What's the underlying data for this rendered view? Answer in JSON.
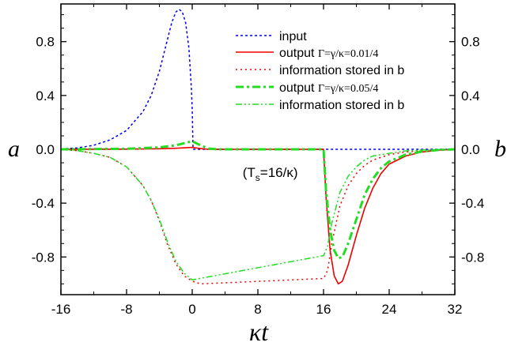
{
  "chart_data": {
    "type": "line",
    "xlabel": "κt",
    "ylabel_left": "a",
    "ylabel_right": "b",
    "xlim": [
      -16,
      32
    ],
    "ylim": [
      -1.08,
      1.08
    ],
    "x_ticks": [
      -16,
      -8,
      0,
      8,
      16,
      24,
      32
    ],
    "y_ticks": [
      0.8,
      0.4,
      0.0,
      -0.4,
      -0.8
    ],
    "y_tick_labels": [
      "0.8",
      "0.4",
      "0.0",
      "-0.4",
      "-0.8"
    ],
    "annotation": {
      "text": "(T",
      "sub": "s",
      "tail": "=16/κ)",
      "x": 10,
      "y": -0.17
    },
    "legend": [
      {
        "label": "input",
        "param": ""
      },
      {
        "label": "output",
        "param": "Γ=γ/κ=0.01/4"
      },
      {
        "label": "information stored in b",
        "param": ""
      },
      {
        "label": "output",
        "param": "Γ=γ/κ=0.05/4"
      },
      {
        "label": "information stored in b",
        "param": ""
      }
    ],
    "series": [
      {
        "label": "input",
        "color": "#0000ee",
        "dash": "dotted",
        "width": 1.5,
        "points": [
          [
            -16,
            0.003
          ],
          [
            -14,
            0.01
          ],
          [
            -12,
            0.03
          ],
          [
            -10,
            0.07
          ],
          [
            -8,
            0.14
          ],
          [
            -6,
            0.28
          ],
          [
            -5,
            0.4
          ],
          [
            -4,
            0.58
          ],
          [
            -3,
            0.82
          ],
          [
            -2.5,
            0.94
          ],
          [
            -2,
            1.02
          ],
          [
            -1.6,
            1.04
          ],
          [
            -1.2,
            1.02
          ],
          [
            -0.8,
            0.94
          ],
          [
            -0.4,
            0.75
          ],
          [
            -0.1,
            0.45
          ],
          [
            0,
            0.3
          ],
          [
            0.1,
            0.0
          ],
          [
            32,
            0.0
          ]
        ]
      },
      {
        "label": "output Γ=0.01/4",
        "color": "#ee0000",
        "dash": "solid",
        "width": 1.6,
        "points": [
          [
            -16,
            0
          ],
          [
            -8,
            0.001
          ],
          [
            -4,
            0.004
          ],
          [
            -2,
            0.008
          ],
          [
            0,
            0.014
          ],
          [
            1,
            0.006
          ],
          [
            2,
            0.0
          ],
          [
            16,
            0.0
          ],
          [
            16.3,
            -0.35
          ],
          [
            16.8,
            -0.75
          ],
          [
            17.3,
            -0.94
          ],
          [
            17.8,
            -1.0
          ],
          [
            18.3,
            -0.98
          ],
          [
            19,
            -0.86
          ],
          [
            20,
            -0.64
          ],
          [
            21,
            -0.44
          ],
          [
            22,
            -0.29
          ],
          [
            23,
            -0.18
          ],
          [
            24,
            -0.11
          ],
          [
            26,
            -0.05
          ],
          [
            28,
            -0.02
          ],
          [
            30,
            -0.006
          ],
          [
            32,
            0
          ]
        ]
      },
      {
        "label": "information stored in b (Γ=0.01/4)",
        "color": "#ee0000",
        "dash": "dotted",
        "width": 1.5,
        "points": [
          [
            -16,
            -0.002
          ],
          [
            -14,
            -0.01
          ],
          [
            -12,
            -0.03
          ],
          [
            -10,
            -0.06
          ],
          [
            -8,
            -0.13
          ],
          [
            -6,
            -0.27
          ],
          [
            -5,
            -0.38
          ],
          [
            -4,
            -0.53
          ],
          [
            -3,
            -0.71
          ],
          [
            -2,
            -0.85
          ],
          [
            -1,
            -0.94
          ],
          [
            0,
            -0.98
          ],
          [
            1,
            -1.0
          ],
          [
            16,
            -0.96
          ],
          [
            16.5,
            -0.9
          ],
          [
            17,
            -0.7
          ],
          [
            18,
            -0.42
          ],
          [
            19,
            -0.27
          ],
          [
            20,
            -0.18
          ],
          [
            21,
            -0.12
          ],
          [
            22,
            -0.08
          ],
          [
            24,
            -0.04
          ],
          [
            26,
            -0.02
          ],
          [
            28,
            -0.01
          ],
          [
            32,
            0
          ]
        ]
      },
      {
        "label": "output Γ=0.05/4",
        "color": "#22dd22",
        "dash": "dashdot",
        "width": 3,
        "points": [
          [
            -16,
            0
          ],
          [
            -8,
            0.004
          ],
          [
            -4,
            0.014
          ],
          [
            -2,
            0.03
          ],
          [
            -1,
            0.045
          ],
          [
            0,
            0.06
          ],
          [
            1,
            0.03
          ],
          [
            2,
            0.006
          ],
          [
            3,
            0
          ],
          [
            16,
            0.0
          ],
          [
            16.3,
            -0.3
          ],
          [
            16.8,
            -0.6
          ],
          [
            17.3,
            -0.75
          ],
          [
            17.8,
            -0.81
          ],
          [
            18.3,
            -0.8
          ],
          [
            19,
            -0.7
          ],
          [
            20,
            -0.52
          ],
          [
            21,
            -0.34
          ],
          [
            22,
            -0.22
          ],
          [
            23,
            -0.14
          ],
          [
            24,
            -0.09
          ],
          [
            26,
            -0.04
          ],
          [
            28,
            -0.016
          ],
          [
            30,
            -0.005
          ],
          [
            32,
            0
          ]
        ]
      },
      {
        "label": "information stored in b (Γ=0.05/4)",
        "color": "#22dd22",
        "dash": "dashdotdot",
        "width": 1.5,
        "points": [
          [
            -16,
            -0.002
          ],
          [
            -14,
            -0.01
          ],
          [
            -12,
            -0.03
          ],
          [
            -10,
            -0.06
          ],
          [
            -8,
            -0.13
          ],
          [
            -6,
            -0.27
          ],
          [
            -5,
            -0.38
          ],
          [
            -4,
            -0.52
          ],
          [
            -3,
            -0.69
          ],
          [
            -2,
            -0.83
          ],
          [
            -1,
            -0.92
          ],
          [
            0,
            -0.97
          ],
          [
            16,
            -0.79
          ],
          [
            16.5,
            -0.72
          ],
          [
            17,
            -0.55
          ],
          [
            18,
            -0.32
          ],
          [
            19,
            -0.2
          ],
          [
            20,
            -0.13
          ],
          [
            21,
            -0.08
          ],
          [
            22,
            -0.05
          ],
          [
            24,
            -0.03
          ],
          [
            26,
            -0.012
          ],
          [
            28,
            -0.005
          ],
          [
            32,
            0
          ]
        ]
      }
    ]
  }
}
